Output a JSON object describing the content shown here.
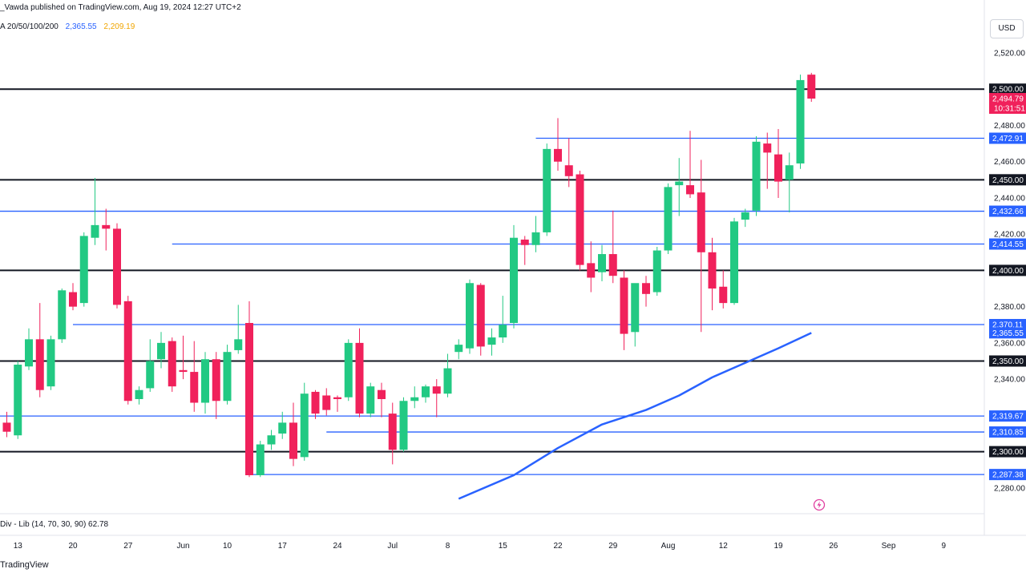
{
  "header": {
    "published": "_Vawda published on TradingView.com, Aug 19, 2024 12:27 UTC+2"
  },
  "ma_legend": {
    "label": "A 20/50/100/200",
    "value1": "2,365.55",
    "value2": "2,209.19",
    "color1": "#2962ff",
    "color2": "#f0a500"
  },
  "currency": "USD",
  "rsi_label": "Div - Lib (14, 70, 30, 90)  62.78",
  "footer": "TradingView",
  "colors": {
    "up": "#22c983",
    "down": "#f0215b",
    "support_line": "#2962ff",
    "key_line": "#131722",
    "ma_line": "#2962ff"
  },
  "chart_data": {
    "type": "candlestick",
    "y_range": [
      2274,
      2528
    ],
    "y_ticks": [
      2280,
      2300,
      2320,
      2340,
      2360,
      2380,
      2400,
      2420,
      2440,
      2460,
      2480,
      2500,
      2520
    ],
    "y_tick_labels": [
      "2,280.00",
      "2,300.00",
      "2,320.00",
      "2,340.00",
      "2,360.00",
      "2,380.00",
      "2,400.00",
      "2,420.00",
      "2,440.00",
      "2,460.00",
      "2,480.00",
      "2,500.00",
      "2,520.00"
    ],
    "x_ticks": [
      {
        "index": 1,
        "label": "13"
      },
      {
        "index": 6,
        "label": "20"
      },
      {
        "index": 11,
        "label": "27"
      },
      {
        "index": 16,
        "label": "Jun"
      },
      {
        "index": 20,
        "label": "10"
      },
      {
        "index": 25,
        "label": "17"
      },
      {
        "index": 30,
        "label": "24"
      },
      {
        "index": 35,
        "label": "Jul"
      },
      {
        "index": 40,
        "label": "8"
      },
      {
        "index": 45,
        "label": "15"
      },
      {
        "index": 50,
        "label": "22"
      },
      {
        "index": 55,
        "label": "29"
      },
      {
        "index": 60,
        "label": "Aug"
      },
      {
        "index": 65,
        "label": "12"
      },
      {
        "index": 70,
        "label": "19"
      },
      {
        "index": 75,
        "label": "26"
      },
      {
        "index": 80,
        "label": "Sep"
      },
      {
        "index": 85,
        "label": "9"
      }
    ],
    "candles": [
      {
        "o": 2316,
        "h": 2322,
        "c": 2311,
        "l": 2308
      },
      {
        "o": 2309,
        "h": 2350,
        "c": 2348,
        "l": 2307
      },
      {
        "o": 2347,
        "h": 2368,
        "c": 2362,
        "l": 2345
      },
      {
        "o": 2362,
        "h": 2382,
        "c": 2334,
        "l": 2330
      },
      {
        "o": 2336,
        "h": 2364,
        "c": 2362,
        "l": 2334
      },
      {
        "o": 2362,
        "h": 2390,
        "c": 2389,
        "l": 2360
      },
      {
        "o": 2388,
        "h": 2393,
        "c": 2380,
        "l": 2378
      },
      {
        "o": 2382,
        "h": 2421,
        "c": 2419,
        "l": 2380
      },
      {
        "o": 2418,
        "h": 2451,
        "c": 2425,
        "l": 2414
      },
      {
        "o": 2425,
        "h": 2434,
        "c": 2423,
        "l": 2411
      },
      {
        "o": 2423,
        "h": 2426,
        "c": 2381,
        "l": 2379
      },
      {
        "o": 2383,
        "h": 2386,
        "c": 2328,
        "l": 2326
      },
      {
        "o": 2329,
        "h": 2336,
        "c": 2334,
        "l": 2326
      },
      {
        "o": 2335,
        "h": 2362,
        "c": 2350,
        "l": 2333
      },
      {
        "o": 2351,
        "h": 2366,
        "c": 2360,
        "l": 2346
      },
      {
        "o": 2361,
        "h": 2363,
        "c": 2336,
        "l": 2333
      },
      {
        "o": 2345,
        "h": 2364,
        "c": 2344,
        "l": 2340
      },
      {
        "o": 2344,
        "h": 2361,
        "c": 2327,
        "l": 2322
      },
      {
        "o": 2327,
        "h": 2355,
        "c": 2351,
        "l": 2321
      },
      {
        "o": 2351,
        "h": 2355,
        "c": 2328,
        "l": 2318
      },
      {
        "o": 2328,
        "h": 2359,
        "c": 2355,
        "l": 2326
      },
      {
        "o": 2356,
        "h": 2381,
        "c": 2362,
        "l": 2354
      },
      {
        "o": 2371,
        "h": 2383,
        "c": 2287,
        "l": 2286
      },
      {
        "o": 2287,
        "h": 2306,
        "c": 2304,
        "l": 2286
      },
      {
        "o": 2304,
        "h": 2312,
        "c": 2309,
        "l": 2301
      },
      {
        "o": 2310,
        "h": 2322,
        "c": 2316,
        "l": 2307
      },
      {
        "o": 2316,
        "h": 2327,
        "c": 2296,
        "l": 2292
      },
      {
        "o": 2297,
        "h": 2338,
        "c": 2332,
        "l": 2295
      },
      {
        "o": 2333,
        "h": 2334,
        "c": 2321,
        "l": 2318
      },
      {
        "o": 2331,
        "h": 2335,
        "c": 2323,
        "l": 2320
      },
      {
        "o": 2330,
        "h": 2331,
        "c": 2329,
        "l": 2322
      },
      {
        "o": 2330,
        "h": 2362,
        "c": 2360,
        "l": 2328
      },
      {
        "o": 2360,
        "h": 2368,
        "c": 2321,
        "l": 2319
      },
      {
        "o": 2321,
        "h": 2338,
        "c": 2336,
        "l": 2319
      },
      {
        "o": 2334,
        "h": 2338,
        "c": 2329,
        "l": 2319
      },
      {
        "o": 2321,
        "h": 2327,
        "c": 2301,
        "l": 2293
      },
      {
        "o": 2301,
        "h": 2330,
        "c": 2328,
        "l": 2300
      },
      {
        "o": 2328,
        "h": 2336,
        "c": 2330,
        "l": 2324
      },
      {
        "o": 2330,
        "h": 2337,
        "c": 2336,
        "l": 2327
      },
      {
        "o": 2336,
        "h": 2340,
        "c": 2332,
        "l": 2319
      },
      {
        "o": 2332,
        "h": 2354,
        "c": 2346,
        "l": 2330
      },
      {
        "o": 2355,
        "h": 2362,
        "c": 2359,
        "l": 2351
      },
      {
        "o": 2357,
        "h": 2395,
        "c": 2393,
        "l": 2354
      },
      {
        "o": 2392,
        "h": 2393,
        "c": 2358,
        "l": 2353
      },
      {
        "o": 2359,
        "h": 2368,
        "c": 2363,
        "l": 2353
      },
      {
        "o": 2363,
        "h": 2386,
        "c": 2370,
        "l": 2360
      },
      {
        "o": 2371,
        "h": 2425,
        "c": 2418,
        "l": 2368
      },
      {
        "o": 2417,
        "h": 2419,
        "c": 2414,
        "l": 2403
      },
      {
        "o": 2414,
        "h": 2430,
        "c": 2421,
        "l": 2410
      },
      {
        "o": 2421,
        "h": 2470,
        "c": 2467,
        "l": 2419
      },
      {
        "o": 2467,
        "h": 2484,
        "c": 2460,
        "l": 2455
      },
      {
        "o": 2458,
        "h": 2473,
        "c": 2452,
        "l": 2446
      },
      {
        "o": 2453,
        "h": 2455,
        "c": 2403,
        "l": 2400
      },
      {
        "o": 2404,
        "h": 2416,
        "c": 2396,
        "l": 2388
      },
      {
        "o": 2399,
        "h": 2414,
        "c": 2409,
        "l": 2394
      },
      {
        "o": 2409,
        "h": 2433,
        "c": 2397,
        "l": 2393
      },
      {
        "o": 2396,
        "h": 2400,
        "c": 2365,
        "l": 2356
      },
      {
        "o": 2366,
        "h": 2392,
        "c": 2393,
        "l": 2358
      },
      {
        "o": 2393,
        "h": 2397,
        "c": 2387,
        "l": 2380
      },
      {
        "o": 2388,
        "h": 2413,
        "c": 2411,
        "l": 2386
      },
      {
        "o": 2411,
        "h": 2448,
        "c": 2446,
        "l": 2409
      },
      {
        "o": 2447,
        "h": 2462,
        "c": 2449,
        "l": 2430
      },
      {
        "o": 2447,
        "h": 2477,
        "c": 2442,
        "l": 2440
      },
      {
        "o": 2443,
        "h": 2461,
        "c": 2410,
        "l": 2366
      },
      {
        "o": 2410,
        "h": 2418,
        "c": 2390,
        "l": 2378
      },
      {
        "o": 2391,
        "h": 2400,
        "c": 2382,
        "l": 2379
      },
      {
        "o": 2382,
        "h": 2429,
        "c": 2427,
        "l": 2381
      },
      {
        "o": 2428,
        "h": 2434,
        "c": 2432,
        "l": 2424
      },
      {
        "o": 2433,
        "h": 2474,
        "c": 2471,
        "l": 2430
      },
      {
        "o": 2470,
        "h": 2476,
        "c": 2465,
        "l": 2445
      },
      {
        "o": 2464,
        "h": 2478,
        "c": 2449,
        "l": 2440
      },
      {
        "o": 2450,
        "h": 2465,
        "c": 2458,
        "l": 2432
      },
      {
        "o": 2459,
        "h": 2508,
        "c": 2505,
        "l": 2456
      },
      {
        "o": 2508,
        "h": 2509,
        "c": 2494.79,
        "l": 2493
      }
    ],
    "ma200": [
      {
        "i": 41,
        "v": 2274
      },
      {
        "i": 46,
        "v": 2287
      },
      {
        "i": 50,
        "v": 2302
      },
      {
        "i": 54,
        "v": 2315
      },
      {
        "i": 58,
        "v": 2323
      },
      {
        "i": 61,
        "v": 2331
      },
      {
        "i": 64,
        "v": 2341
      },
      {
        "i": 67,
        "v": 2349
      },
      {
        "i": 70,
        "v": 2357
      },
      {
        "i": 73,
        "v": 2365.55
      }
    ],
    "horizontal_levels": [
      {
        "value": 2500.0,
        "label": "2,500.00",
        "style": "key",
        "from_index": -1
      },
      {
        "value": 2472.91,
        "label": "2,472.91",
        "style": "support",
        "from_index": 48
      },
      {
        "value": 2450.0,
        "label": "2,450.00",
        "style": "key",
        "from_index": -1
      },
      {
        "value": 2432.66,
        "label": "2,432.66",
        "style": "support",
        "from_index": -1
      },
      {
        "value": 2414.55,
        "label": "2,414.55",
        "style": "support",
        "from_index": 15
      },
      {
        "value": 2400.0,
        "label": "2,400.00",
        "style": "key",
        "from_index": -1
      },
      {
        "value": 2370.11,
        "label": "2,370.11",
        "style": "support",
        "from_index": 6
      },
      {
        "value": 2350.0,
        "label": "2,350.00",
        "style": "key",
        "from_index": -1
      },
      {
        "value": 2319.67,
        "label": "2,319.67",
        "style": "support",
        "from_index": -1
      },
      {
        "value": 2310.85,
        "label": "2,310.85",
        "style": "support",
        "from_index": 29
      },
      {
        "value": 2300.0,
        "label": "2,300.00",
        "style": "key",
        "from_index": -1
      },
      {
        "value": 2287.38,
        "label": "2,287.38",
        "style": "support",
        "from_index": 22
      }
    ],
    "price_tags": [
      {
        "value": 2494.79,
        "label": "2,494.79",
        "subtext": "10:31:51",
        "kind": "current"
      },
      {
        "value": 2365.55,
        "label": "2,365.55",
        "kind": "ma"
      }
    ]
  }
}
